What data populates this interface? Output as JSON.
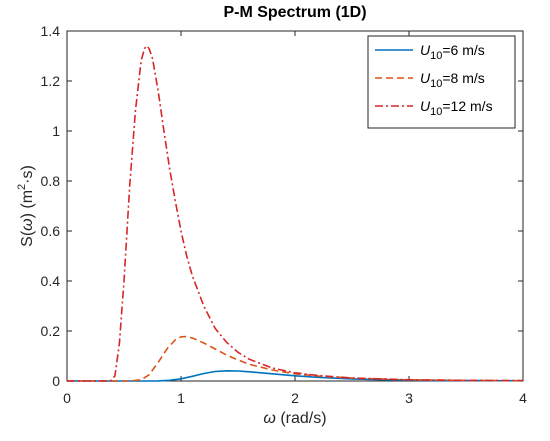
{
  "chart_data": {
    "type": "line",
    "title": "P-M Spectrum (1D)",
    "xlabel": {
      "symbol": "ω",
      "text": " (rad/s)"
    },
    "ylabel": {
      "base": "S(",
      "symbol": "ω",
      "mid": ") (m",
      "sup": "2",
      "tail": "·s)"
    },
    "xlim": [
      0,
      4
    ],
    "ylim": [
      0,
      1.4
    ],
    "x_ticks": [
      "0",
      "1",
      "2",
      "3",
      "4"
    ],
    "y_ticks": [
      "0",
      "0.2",
      "0.4",
      "0.6",
      "0.8",
      "1",
      "1.2",
      "1.4"
    ],
    "grid": false,
    "legend_position": "top-right",
    "series": [
      {
        "name": {
          "var": "U",
          "sub": "10",
          "rest": "=6 m/s"
        },
        "color": "#0072BD",
        "style": "solid",
        "x": [
          0,
          0.6,
          0.8,
          0.9,
          1.0,
          1.1,
          1.2,
          1.3,
          1.4,
          1.5,
          1.6,
          1.8,
          2.0,
          2.2,
          2.5,
          2.8,
          3.2,
          3.6,
          4.0
        ],
        "y": [
          0,
          0,
          0.0005,
          0.003,
          0.009,
          0.019,
          0.03,
          0.038,
          0.041,
          0.04,
          0.037,
          0.029,
          0.021,
          0.015,
          0.0085,
          0.005,
          0.0026,
          0.0014,
          0.0008
        ]
      },
      {
        "name": {
          "var": "U",
          "sub": "10",
          "rest": "=8 m/s"
        },
        "color": "#D95319",
        "style": "dashed",
        "x": [
          0,
          0.55,
          0.65,
          0.72,
          0.8,
          0.88,
          0.95,
          1.0,
          1.05,
          1.1,
          1.2,
          1.3,
          1.4,
          1.5,
          1.6,
          1.8,
          2.0,
          2.2,
          2.5,
          3.0,
          3.5,
          4.0
        ],
        "y": [
          0,
          0,
          0.005,
          0.025,
          0.075,
          0.13,
          0.165,
          0.177,
          0.178,
          0.172,
          0.152,
          0.128,
          0.104,
          0.084,
          0.067,
          0.044,
          0.029,
          0.02,
          0.0115,
          0.005,
          0.0024,
          0.0013
        ]
      },
      {
        "name": {
          "var": "U",
          "sub": "10",
          "rest": "=12 m/s"
        },
        "color": "#D62728",
        "style": "dashdot",
        "x": [
          0,
          0.38,
          0.42,
          0.46,
          0.5,
          0.55,
          0.6,
          0.65,
          0.68,
          0.7,
          0.72,
          0.75,
          0.8,
          0.85,
          0.9,
          0.95,
          1.0,
          1.05,
          1.1,
          1.2,
          1.3,
          1.4,
          1.5,
          1.6,
          1.8,
          2.0,
          2.2,
          2.5,
          3.0,
          3.5,
          4.0
        ],
        "y": [
          0,
          0,
          0.02,
          0.15,
          0.4,
          0.78,
          1.08,
          1.28,
          1.33,
          1.34,
          1.33,
          1.29,
          1.16,
          1.0,
          0.85,
          0.72,
          0.6,
          0.5,
          0.42,
          0.3,
          0.21,
          0.155,
          0.115,
          0.087,
          0.052,
          0.033,
          0.022,
          0.012,
          0.005,
          0.0025,
          0.0014
        ]
      }
    ]
  }
}
